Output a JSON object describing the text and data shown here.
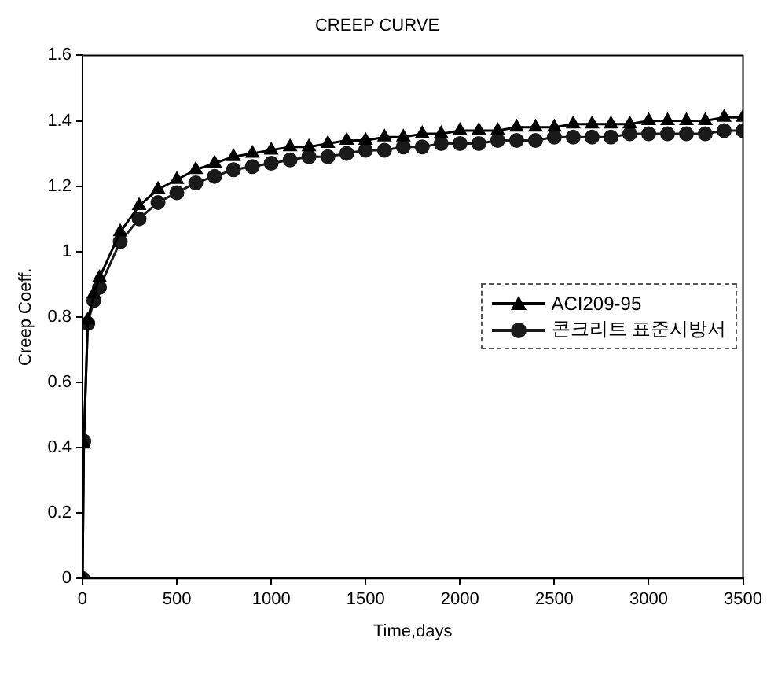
{
  "chart_data": {
    "type": "line",
    "title": "CREEP CURVE",
    "xlabel": "Time,days",
    "ylabel": "Creep Coeff.",
    "xlim": [
      0,
      3500
    ],
    "xticks": [
      0,
      500,
      1000,
      1500,
      2000,
      2500,
      3000,
      3500
    ],
    "ylim": [
      0,
      1.6
    ],
    "yticks": [
      0,
      0.2,
      0.4,
      0.6,
      0.8,
      1,
      1.2,
      1.4,
      1.6
    ],
    "grid": false,
    "legend": "right",
    "line_style": "solid",
    "x": [
      0,
      7,
      28,
      60,
      90,
      200,
      300,
      400,
      500,
      600,
      700,
      800,
      900,
      1000,
      1100,
      1200,
      1300,
      1400,
      1500,
      1600,
      1700,
      1800,
      1900,
      2000,
      2100,
      2200,
      2300,
      2400,
      2500,
      2600,
      2700,
      2800,
      2900,
      3000,
      3100,
      3200,
      3300,
      3400,
      3500
    ],
    "series": [
      {
        "name": "ACI209-95",
        "color": "#000000",
        "marker": "triangle",
        "values": [
          0,
          0.41,
          0.79,
          0.87,
          0.92,
          1.06,
          1.14,
          1.19,
          1.22,
          1.25,
          1.27,
          1.29,
          1.3,
          1.31,
          1.32,
          1.32,
          1.33,
          1.34,
          1.34,
          1.35,
          1.35,
          1.36,
          1.36,
          1.37,
          1.37,
          1.37,
          1.38,
          1.38,
          1.38,
          1.39,
          1.39,
          1.39,
          1.39,
          1.4,
          1.4,
          1.4,
          1.4,
          1.41,
          1.41
        ]
      },
      {
        "name": "콘크리트 표준시방서",
        "color": "#1a1a1a",
        "marker": "circle",
        "values": [
          0,
          0.42,
          0.78,
          0.85,
          0.89,
          1.03,
          1.1,
          1.15,
          1.18,
          1.21,
          1.23,
          1.25,
          1.26,
          1.27,
          1.28,
          1.29,
          1.29,
          1.3,
          1.31,
          1.31,
          1.32,
          1.32,
          1.33,
          1.33,
          1.33,
          1.34,
          1.34,
          1.34,
          1.35,
          1.35,
          1.35,
          1.35,
          1.36,
          1.36,
          1.36,
          1.36,
          1.36,
          1.37,
          1.37
        ]
      }
    ]
  }
}
